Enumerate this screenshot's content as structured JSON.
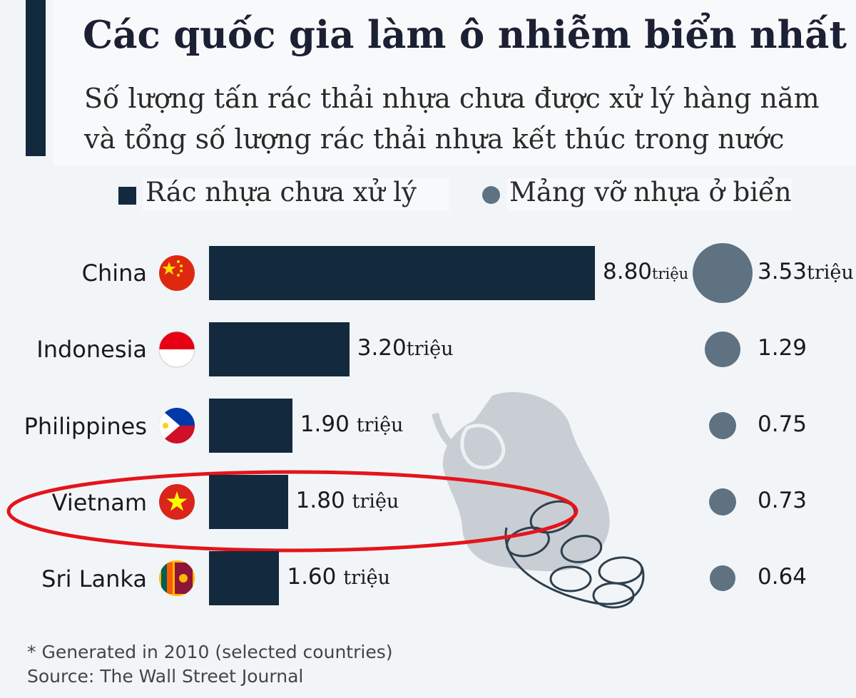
{
  "header": {
    "title": "Các quốc gia làm ô nhiễm biển nhất",
    "subtitle": "Số lượng tấn rác thải nhựa chưa được xử lý hàng năm và tổng số lượng rác thải nhựa kết thúc trong nước"
  },
  "legend": {
    "bars_label": "Rác nhựa chưa xử lý",
    "bubbles_label": "Mảng vỡ nhựa ở biển"
  },
  "chart_data": {
    "type": "bar",
    "categories": [
      "China",
      "Indonesia",
      "Philippines",
      "Vietnam",
      "Sri Lanka"
    ],
    "series": [
      {
        "name": "Rác nhựa chưa xử lý",
        "values": [
          8.8,
          3.2,
          1.9,
          1.8,
          1.6
        ]
      },
      {
        "name": "Mảng vỡ nhựa ở biển",
        "values": [
          3.53,
          1.29,
          0.75,
          0.73,
          0.64
        ]
      }
    ],
    "bar_labels": [
      "8.80",
      "3.20",
      "1.90",
      "1.80",
      "1.60"
    ],
    "bar_units": [
      "triệu",
      "triệu",
      "triệu",
      "triệu",
      "triệu"
    ],
    "bubble_labels": [
      "3.53",
      "1.29",
      "0.75",
      "0.73",
      "0.64"
    ],
    "bubble_units": [
      "triệu",
      "",
      "",
      "",
      ""
    ],
    "highlighted": "Vietnam",
    "highlight_color": "#e5141b",
    "bar_color": "#13293d",
    "bubble_color": "#5e7282"
  },
  "footnotes": {
    "note": "* Generated in 2010 (selected countries)",
    "source": "Source: The Wall Street Journal"
  }
}
